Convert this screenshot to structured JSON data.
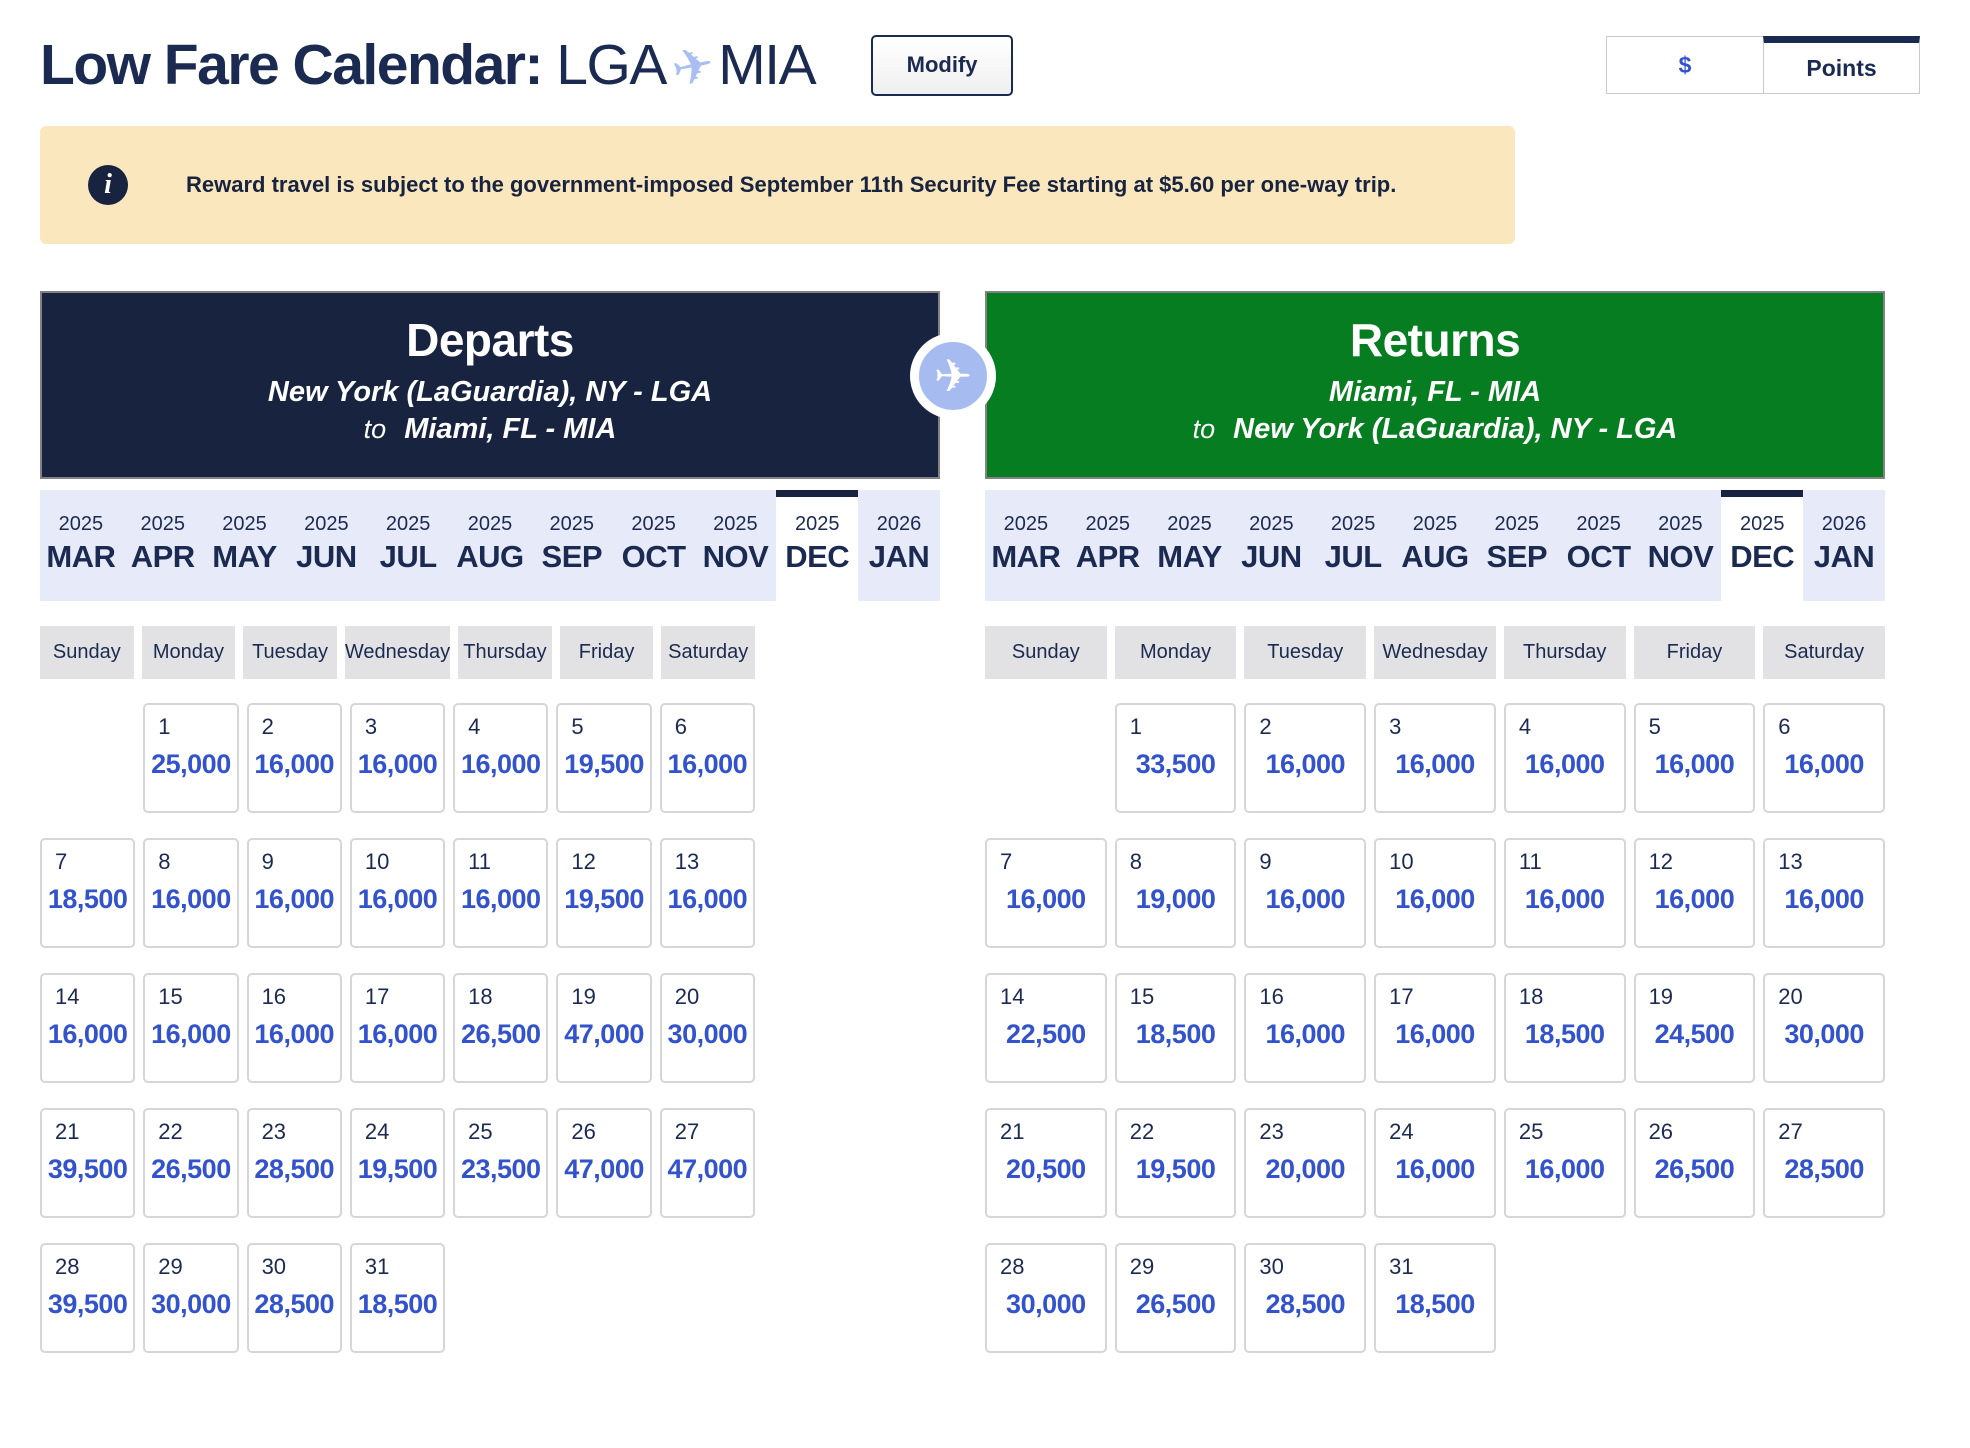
{
  "page": {
    "title_prefix": "Low Fare Calendar:",
    "route_from": "LGA",
    "route_to": "MIA",
    "plane_icon": "plane",
    "modify_label": "Modify",
    "currency_toggle": {
      "dollar_label": "$",
      "points_label": "Points",
      "selected": "Points"
    },
    "banner_text": "Reward travel is subject to the government-imposed September 11th Security Fee starting at $5.60 per one-way trip."
  },
  "colors": {
    "navy": "#17233f",
    "green": "#067d20",
    "price_blue": "#3353cc",
    "strip_lavender": "#e7eaf8",
    "banner_cream": "#fbe7bd",
    "plane_periwinkle": "#a6bcf1"
  },
  "weekdays": [
    "Sunday",
    "Monday",
    "Tuesday",
    "Wednesday",
    "Thursday",
    "Friday",
    "Saturday"
  ],
  "months": [
    {
      "year": "2025",
      "label": "MAR",
      "selected": false
    },
    {
      "year": "2025",
      "label": "APR",
      "selected": false
    },
    {
      "year": "2025",
      "label": "MAY",
      "selected": false
    },
    {
      "year": "2025",
      "label": "JUN",
      "selected": false
    },
    {
      "year": "2025",
      "label": "JUL",
      "selected": false
    },
    {
      "year": "2025",
      "label": "AUG",
      "selected": false
    },
    {
      "year": "2025",
      "label": "SEP",
      "selected": false
    },
    {
      "year": "2025",
      "label": "OCT",
      "selected": false
    },
    {
      "year": "2025",
      "label": "NOV",
      "selected": false
    },
    {
      "year": "2025",
      "label": "DEC",
      "selected": true
    },
    {
      "year": "2026",
      "label": "JAN",
      "selected": false
    }
  ],
  "calendars": [
    {
      "id": "departs",
      "title": "Departs",
      "line1": "New York (LaGuardia), NY - LGA",
      "to_word": "to",
      "line2": "Miami, FL - MIA",
      "header_color": "#17233f",
      "weeks": [
        [
          null,
          {
            "day": "1",
            "price": "25,000"
          },
          {
            "day": "2",
            "price": "16,000"
          },
          {
            "day": "3",
            "price": "16,000"
          },
          {
            "day": "4",
            "price": "16,000"
          },
          {
            "day": "5",
            "price": "19,500"
          },
          {
            "day": "6",
            "price": "16,000"
          }
        ],
        [
          {
            "day": "7",
            "price": "18,500"
          },
          {
            "day": "8",
            "price": "16,000"
          },
          {
            "day": "9",
            "price": "16,000"
          },
          {
            "day": "10",
            "price": "16,000"
          },
          {
            "day": "11",
            "price": "16,000"
          },
          {
            "day": "12",
            "price": "19,500"
          },
          {
            "day": "13",
            "price": "16,000"
          }
        ],
        [
          {
            "day": "14",
            "price": "16,000"
          },
          {
            "day": "15",
            "price": "16,000"
          },
          {
            "day": "16",
            "price": "16,000"
          },
          {
            "day": "17",
            "price": "16,000"
          },
          {
            "day": "18",
            "price": "26,500"
          },
          {
            "day": "19",
            "price": "47,000"
          },
          {
            "day": "20",
            "price": "30,000"
          }
        ],
        [
          {
            "day": "21",
            "price": "39,500"
          },
          {
            "day": "22",
            "price": "26,500"
          },
          {
            "day": "23",
            "price": "28,500"
          },
          {
            "day": "24",
            "price": "19,500"
          },
          {
            "day": "25",
            "price": "23,500"
          },
          {
            "day": "26",
            "price": "47,000"
          },
          {
            "day": "27",
            "price": "47,000"
          }
        ],
        [
          {
            "day": "28",
            "price": "39,500"
          },
          {
            "day": "29",
            "price": "30,000"
          },
          {
            "day": "30",
            "price": "28,500"
          },
          {
            "day": "31",
            "price": "18,500"
          },
          null,
          null,
          null
        ]
      ]
    },
    {
      "id": "returns",
      "title": "Returns",
      "line1": "Miami, FL - MIA",
      "to_word": "to",
      "line2": "New York (LaGuardia), NY - LGA",
      "header_color": "#067d20",
      "weeks": [
        [
          null,
          {
            "day": "1",
            "price": "33,500"
          },
          {
            "day": "2",
            "price": "16,000"
          },
          {
            "day": "3",
            "price": "16,000"
          },
          {
            "day": "4",
            "price": "16,000"
          },
          {
            "day": "5",
            "price": "16,000"
          },
          {
            "day": "6",
            "price": "16,000"
          }
        ],
        [
          {
            "day": "7",
            "price": "16,000"
          },
          {
            "day": "8",
            "price": "19,000"
          },
          {
            "day": "9",
            "price": "16,000"
          },
          {
            "day": "10",
            "price": "16,000"
          },
          {
            "day": "11",
            "price": "16,000"
          },
          {
            "day": "12",
            "price": "16,000"
          },
          {
            "day": "13",
            "price": "16,000"
          }
        ],
        [
          {
            "day": "14",
            "price": "22,500"
          },
          {
            "day": "15",
            "price": "18,500"
          },
          {
            "day": "16",
            "price": "16,000"
          },
          {
            "day": "17",
            "price": "16,000"
          },
          {
            "day": "18",
            "price": "18,500"
          },
          {
            "day": "19",
            "price": "24,500"
          },
          {
            "day": "20",
            "price": "30,000"
          }
        ],
        [
          {
            "day": "21",
            "price": "20,500"
          },
          {
            "day": "22",
            "price": "19,500"
          },
          {
            "day": "23",
            "price": "20,000"
          },
          {
            "day": "24",
            "price": "16,000"
          },
          {
            "day": "25",
            "price": "16,000"
          },
          {
            "day": "26",
            "price": "26,500"
          },
          {
            "day": "27",
            "price": "28,500"
          }
        ],
        [
          {
            "day": "28",
            "price": "30,000"
          },
          {
            "day": "29",
            "price": "26,500"
          },
          {
            "day": "30",
            "price": "28,500"
          },
          {
            "day": "31",
            "price": "18,500"
          },
          null,
          null,
          null
        ]
      ]
    }
  ]
}
